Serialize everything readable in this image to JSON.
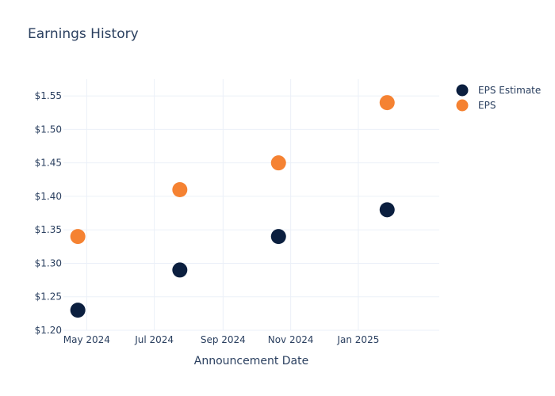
{
  "chart_data": {
    "type": "scatter",
    "title": "Earnings History",
    "xlabel": "Announcement Date",
    "ylabel": "",
    "x_ticks": [
      "May 2024",
      "Jul 2024",
      "Sep 2024",
      "Nov 2024",
      "Jan 2025"
    ],
    "x_tick_dates": [
      "2024-05-01",
      "2024-07-01",
      "2024-09-01",
      "2024-11-01",
      "2025-01-01"
    ],
    "xlim": [
      "2024-04-10",
      "2025-03-15"
    ],
    "y_ticks": [
      "$1.20",
      "$1.25",
      "$1.30",
      "$1.35",
      "$1.40",
      "$1.45",
      "$1.50",
      "$1.55"
    ],
    "ylim": [
      1.2,
      1.575
    ],
    "grid": true,
    "legend_position": "top-right",
    "series": [
      {
        "name": "EPS Estimate",
        "color": "#0b1f3f",
        "points": [
          {
            "x": "2024-04-23",
            "y": 1.23
          },
          {
            "x": "2024-07-24",
            "y": 1.29
          },
          {
            "x": "2024-10-21",
            "y": 1.34
          },
          {
            "x": "2025-01-27",
            "y": 1.38
          }
        ]
      },
      {
        "name": "EPS",
        "color": "#f58232",
        "points": [
          {
            "x": "2024-04-23",
            "y": 1.34
          },
          {
            "x": "2024-07-24",
            "y": 1.41
          },
          {
            "x": "2024-10-21",
            "y": 1.45
          },
          {
            "x": "2025-01-27",
            "y": 1.54
          }
        ]
      }
    ]
  }
}
